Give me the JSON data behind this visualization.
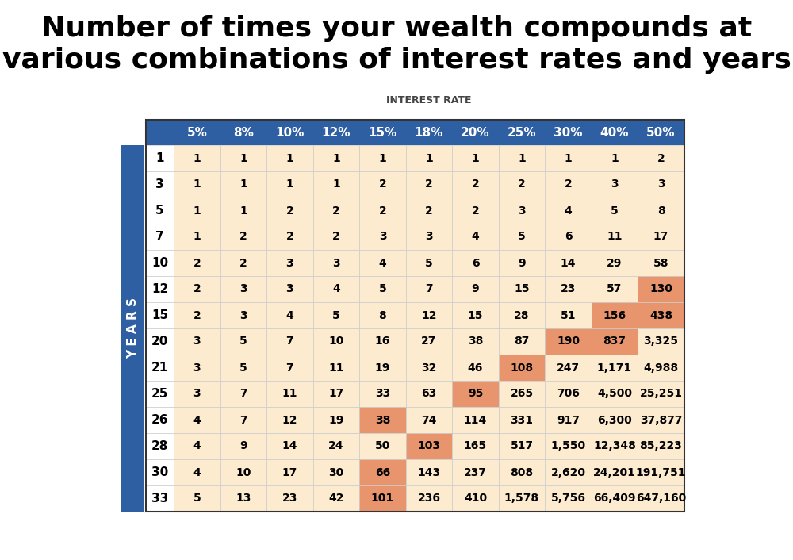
{
  "title_line1": "Number of times your wealth compounds at",
  "title_line2": "various combinations of interest rates and years",
  "interest_rate_label": "INTEREST RATE",
  "years_label": "Y E A R S",
  "col_headers": [
    "5%",
    "8%",
    "10%",
    "12%",
    "15%",
    "18%",
    "20%",
    "25%",
    "30%",
    "40%",
    "50%"
  ],
  "row_headers": [
    "1",
    "3",
    "5",
    "7",
    "10",
    "12",
    "15",
    "20",
    "21",
    "25",
    "26",
    "28",
    "30",
    "33"
  ],
  "table_data": [
    [
      1,
      1,
      1,
      1,
      1,
      1,
      1,
      1,
      1,
      1,
      2
    ],
    [
      1,
      1,
      1,
      1,
      2,
      2,
      2,
      2,
      2,
      3,
      3
    ],
    [
      1,
      1,
      2,
      2,
      2,
      2,
      2,
      3,
      4,
      5,
      8
    ],
    [
      1,
      2,
      2,
      2,
      3,
      3,
      4,
      5,
      6,
      11,
      17
    ],
    [
      2,
      2,
      3,
      3,
      4,
      5,
      6,
      9,
      14,
      29,
      58
    ],
    [
      2,
      3,
      3,
      4,
      5,
      7,
      9,
      15,
      23,
      57,
      130
    ],
    [
      2,
      3,
      4,
      5,
      8,
      12,
      15,
      28,
      51,
      156,
      438
    ],
    [
      3,
      5,
      7,
      10,
      16,
      27,
      38,
      87,
      190,
      837,
      3325
    ],
    [
      3,
      5,
      7,
      11,
      19,
      32,
      46,
      108,
      247,
      1171,
      4988
    ],
    [
      3,
      7,
      11,
      17,
      33,
      63,
      95,
      265,
      706,
      4500,
      25251
    ],
    [
      4,
      7,
      12,
      19,
      38,
      74,
      114,
      331,
      917,
      6300,
      37877
    ],
    [
      4,
      9,
      14,
      24,
      50,
      103,
      165,
      517,
      1550,
      12348,
      85223
    ],
    [
      4,
      10,
      17,
      30,
      66,
      143,
      237,
      808,
      2620,
      24201,
      191751
    ],
    [
      5,
      13,
      23,
      42,
      101,
      236,
      410,
      1578,
      5756,
      66409,
      647160
    ]
  ],
  "table_data_display": [
    [
      "1",
      "1",
      "1",
      "1",
      "1",
      "1",
      "1",
      "1",
      "1",
      "1",
      "2"
    ],
    [
      "1",
      "1",
      "1",
      "1",
      "2",
      "2",
      "2",
      "2",
      "2",
      "3",
      "3"
    ],
    [
      "1",
      "1",
      "2",
      "2",
      "2",
      "2",
      "2",
      "3",
      "4",
      "5",
      "8"
    ],
    [
      "1",
      "2",
      "2",
      "2",
      "3",
      "3",
      "4",
      "5",
      "6",
      "11",
      "17"
    ],
    [
      "2",
      "2",
      "3",
      "3",
      "4",
      "5",
      "6",
      "9",
      "14",
      "29",
      "58"
    ],
    [
      "2",
      "3",
      "3",
      "4",
      "5",
      "7",
      "9",
      "15",
      "23",
      "57",
      "130"
    ],
    [
      "2",
      "3",
      "4",
      "5",
      "8",
      "12",
      "15",
      "28",
      "51",
      "156",
      "438"
    ],
    [
      "3",
      "5",
      "7",
      "10",
      "16",
      "27",
      "38",
      "87",
      "190",
      "837",
      "3,325"
    ],
    [
      "3",
      "5",
      "7",
      "11",
      "19",
      "32",
      "46",
      "108",
      "247",
      "1,171",
      "4,988"
    ],
    [
      "3",
      "7",
      "11",
      "17",
      "33",
      "63",
      "95",
      "265",
      "706",
      "4,500",
      "25,251"
    ],
    [
      "4",
      "7",
      "12",
      "19",
      "38",
      "74",
      "114",
      "331",
      "917",
      "6,300",
      "37,877"
    ],
    [
      "4",
      "9",
      "14",
      "24",
      "50",
      "103",
      "165",
      "517",
      "1,550",
      "12,348",
      "85,223"
    ],
    [
      "4",
      "10",
      "17",
      "30",
      "66",
      "143",
      "237",
      "808",
      "2,620",
      "24,201",
      "191,751"
    ],
    [
      "5",
      "13",
      "23",
      "42",
      "101",
      "236",
      "410",
      "1,578",
      "5,756",
      "66,409",
      "647,160"
    ]
  ],
  "highlight_orange": [
    [
      5,
      10
    ],
    [
      6,
      9
    ],
    [
      6,
      10
    ],
    [
      7,
      8
    ],
    [
      7,
      9
    ],
    [
      8,
      7
    ],
    [
      9,
      6
    ],
    [
      10,
      4
    ],
    [
      11,
      5
    ],
    [
      12,
      4
    ],
    [
      13,
      4
    ]
  ],
  "header_bg": "#2E5FA3",
  "header_text": "#FFFFFF",
  "row_bg_light": "#FDEBD0",
  "row_bg_orange": "#E8956D",
  "row_bg_white": "#FFFFFF",
  "years_bar_color": "#2E5FA3",
  "title_color": "#000000",
  "border_color": "#CCCCCC",
  "body_text_color": "#000000"
}
